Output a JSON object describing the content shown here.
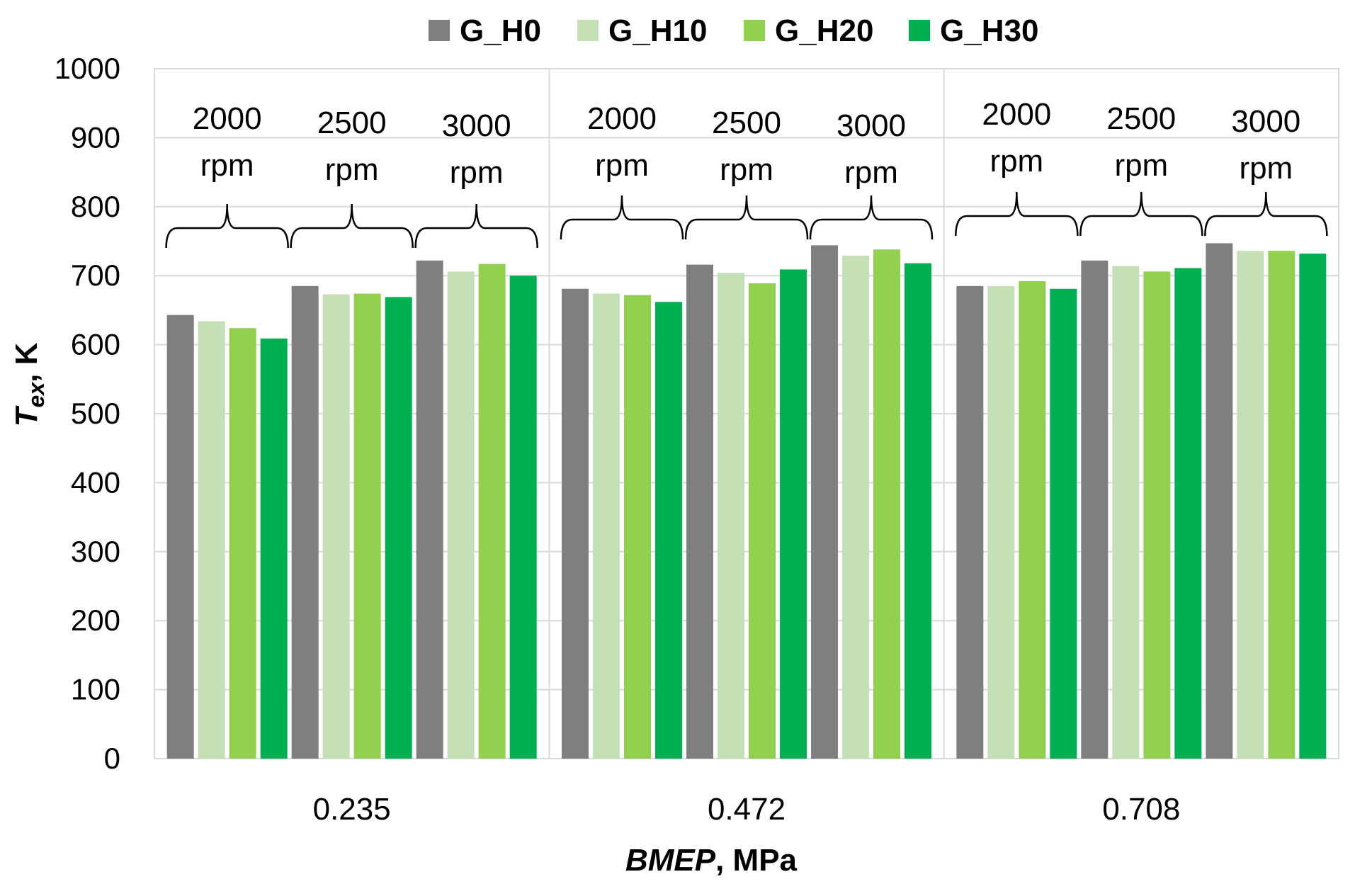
{
  "chart_data": {
    "type": "bar",
    "title": "",
    "xlabel_italic": "BMEP",
    "xlabel_rest": ", MPa",
    "ylabel_main": "T",
    "ylabel_sub": "ex",
    "ylabel_rest": ", K",
    "ylim": [
      0,
      1000
    ],
    "ytick_values": [
      0,
      100,
      200,
      300,
      400,
      500,
      600,
      700,
      800,
      900,
      1000
    ],
    "ytick_labels": [
      "0",
      "100",
      "200",
      "300",
      "400",
      "500",
      "600",
      "700",
      "800",
      "900",
      "1000"
    ],
    "grid": true,
    "legend_position": "top-center",
    "bmep_groups": [
      "0.235",
      "0.472",
      "0.708"
    ],
    "speed_labels": [
      {
        "value": "2000",
        "unit": "rpm"
      },
      {
        "value": "2500",
        "unit": "rpm"
      },
      {
        "value": "3000",
        "unit": "rpm"
      }
    ],
    "series": [
      {
        "name": "G_H0",
        "color": "#7f7f7f",
        "values": [
          643,
          685,
          722,
          681,
          716,
          744,
          685,
          722,
          747
        ]
      },
      {
        "name": "G_H10",
        "color": "#c5e0b4",
        "values": [
          634,
          673,
          706,
          674,
          704,
          729,
          685,
          714,
          736
        ]
      },
      {
        "name": "G_H20",
        "color": "#92d050",
        "values": [
          624,
          674,
          717,
          672,
          689,
          738,
          692,
          706,
          736
        ]
      },
      {
        "name": "G_H30",
        "color": "#00b050",
        "values": [
          609,
          669,
          700,
          662,
          709,
          718,
          681,
          711,
          732
        ]
      }
    ]
  }
}
